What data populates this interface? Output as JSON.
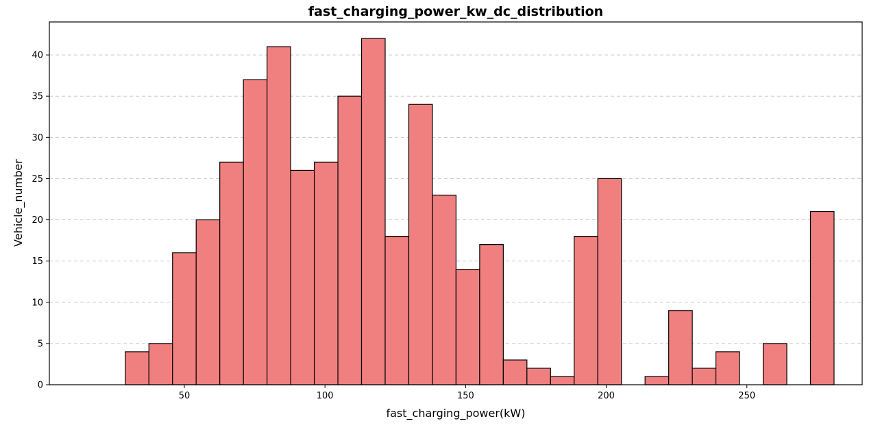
{
  "chart_data": {
    "type": "bar",
    "title": "fast_charging_power_kw_dc_distribution",
    "xlabel": "fast_charging_power(kW)",
    "ylabel": "Vehicle_number",
    "xlim": [
      2,
      291
    ],
    "ylim": [
      0,
      44
    ],
    "xticks": [
      50,
      100,
      150,
      200,
      250
    ],
    "yticks": [
      0,
      5,
      10,
      15,
      20,
      25,
      30,
      35,
      40
    ],
    "grid": "y, dashed",
    "bar_color": "#f08080",
    "edge_color": "#000000",
    "bin_edges": [
      29,
      37.4,
      45.8,
      54.2,
      62.6,
      71,
      79.4,
      87.8,
      96.2,
      104.6,
      113,
      121.4,
      129.8,
      138.2,
      146.6,
      155,
      163.4,
      171.8,
      180.2,
      188.6,
      197,
      205.4,
      213.8,
      222.2,
      230.6,
      239,
      247.4,
      255.8,
      264.2,
      272.6,
      281
    ],
    "values": [
      4,
      5,
      16,
      20,
      27,
      37,
      41,
      26,
      27,
      35,
      42,
      18,
      34,
      23,
      14,
      17,
      3,
      2,
      1,
      18,
      25,
      0,
      1,
      9,
      2,
      4,
      0,
      5,
      0,
      21
    ]
  }
}
